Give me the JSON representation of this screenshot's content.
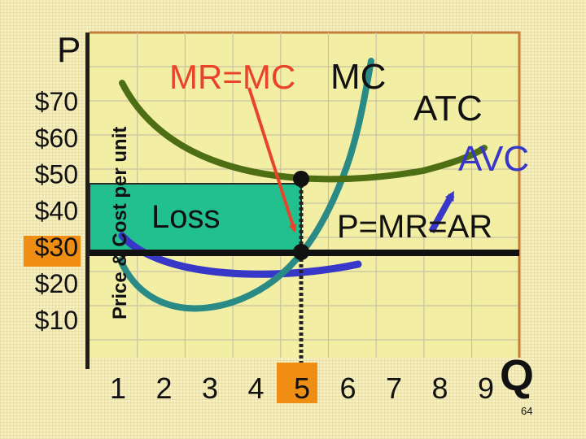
{
  "chart_data": {
    "type": "line",
    "price_axis_letter": "P",
    "quantity_axis_letter": "Q",
    "ylabel": "Price & Cost per unit",
    "y_ticks": [
      "$70",
      "$60",
      "$50",
      "$40",
      "$30",
      "$20",
      "$10"
    ],
    "x_ticks": [
      "1",
      "2",
      "3",
      "4",
      "5",
      "6",
      "7",
      "8",
      "9"
    ],
    "highlighted_price_tick": "$30",
    "highlighted_quantity_tick": "5",
    "grid": true,
    "curves": [
      {
        "label": "MC",
        "color": "#2a8a86"
      },
      {
        "label": "ATC",
        "color": "#4e6e14"
      },
      {
        "label": "AVC",
        "color": "#3838c8"
      }
    ],
    "price_line": {
      "label": "P=MR=AR",
      "color": "#111111"
    },
    "loss_area": {
      "label": "Loss",
      "color": "#22c08e"
    },
    "annotation": {
      "label": "MR=MC",
      "color": "#e8442a"
    },
    "page_number": "64"
  },
  "colors": {
    "plot_background": "#f2eea4",
    "tick_highlight": "#f08e14",
    "frame": "#c57e3a",
    "grid": "#c9c2a2"
  }
}
